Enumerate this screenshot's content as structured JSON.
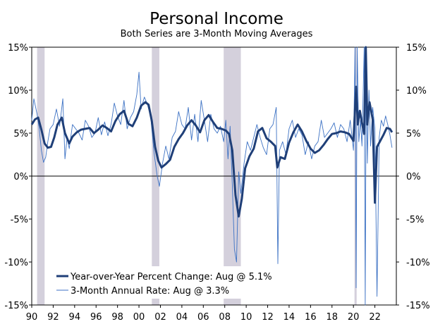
{
  "chart_data": {
    "type": "line",
    "title": "Personal Income",
    "subtitle": "Both Series are 3-Month Moving Averages",
    "ylim": [
      -15,
      15
    ],
    "y_ticks": [
      15,
      10,
      5,
      0,
      -5,
      -10,
      -15
    ],
    "y_tick_labels": [
      "15%",
      "10%",
      "5%",
      "0%",
      "-5%",
      "-10%",
      "-15%"
    ],
    "xlim": [
      1990.0,
      2024.0
    ],
    "x_ticks": [
      1990,
      1992,
      1994,
      1996,
      1998,
      2000,
      2002,
      2004,
      2006,
      2008,
      2010,
      2012,
      2014,
      2016,
      2018,
      2020,
      2022
    ],
    "x_tick_labels": [
      "90",
      "92",
      "94",
      "96",
      "98",
      "00",
      "02",
      "04",
      "06",
      "08",
      "10",
      "12",
      "14",
      "16",
      "18",
      "20",
      "22"
    ],
    "recessions": [
      [
        1990.5,
        1991.2
      ],
      [
        2001.2,
        2001.9
      ],
      [
        2007.9,
        2009.5
      ],
      [
        2020.1,
        2020.3
      ]
    ],
    "legend_placement": "bottom-left",
    "colors": {
      "yoy": "#1f3f78",
      "annual": "#3d72c4",
      "recession": "#d4d0dc",
      "zero_line": "#000000"
    },
    "series": [
      {
        "name": "Year-over-Year Percent Change: Aug @ 5.1%",
        "x": [
          1990.0,
          1990.3,
          1990.6,
          1990.9,
          1991.2,
          1991.5,
          1991.8,
          1992.1,
          1992.4,
          1992.8,
          1993.1,
          1993.5,
          1993.8,
          1994.2,
          1994.6,
          1995.0,
          1995.4,
          1995.8,
          1996.2,
          1996.6,
          1997.0,
          1997.4,
          1997.8,
          1998.2,
          1998.6,
          1999.0,
          1999.4,
          1999.8,
          2000.2,
          2000.6,
          2000.9,
          2001.2,
          2001.5,
          2001.8,
          2002.1,
          2002.5,
          2002.9,
          2003.3,
          2003.7,
          2004.1,
          2004.5,
          2004.9,
          2005.3,
          2005.7,
          2006.1,
          2006.5,
          2006.9,
          2007.3,
          2007.7,
          2008.1,
          2008.4,
          2008.7,
          2009.0,
          2009.3,
          2009.6,
          2009.9,
          2010.3,
          2010.7,
          2011.1,
          2011.5,
          2011.9,
          2012.3,
          2012.7,
          2012.9,
          2013.2,
          2013.6,
          2014.0,
          2014.4,
          2014.8,
          2015.2,
          2015.6,
          2016.0,
          2016.4,
          2016.8,
          2017.2,
          2017.6,
          2018.0,
          2018.4,
          2018.8,
          2019.2,
          2019.6,
          2020.0,
          2020.25,
          2020.4,
          2020.6,
          2020.8,
          2021.0,
          2021.15,
          2021.3,
          2021.5,
          2021.8,
          2022.0,
          2022.2,
          2022.5,
          2022.8,
          2023.1,
          2023.4,
          2023.6
        ],
        "y": [
          6.0,
          6.6,
          6.8,
          5.4,
          3.8,
          3.3,
          3.4,
          4.5,
          6.0,
          6.8,
          5.0,
          3.8,
          4.6,
          5.1,
          5.4,
          5.5,
          5.6,
          5.0,
          5.4,
          5.9,
          5.6,
          5.2,
          6.4,
          7.2,
          7.6,
          6.1,
          5.8,
          6.8,
          8.2,
          8.6,
          8.3,
          6.4,
          3.4,
          1.8,
          1.0,
          1.4,
          1.9,
          3.4,
          4.3,
          5.0,
          5.9,
          6.5,
          5.9,
          5.1,
          6.5,
          7.1,
          6.3,
          5.6,
          5.5,
          5.3,
          4.9,
          3.0,
          -2.2,
          -4.7,
          -2.6,
          0.9,
          2.3,
          3.2,
          5.2,
          5.6,
          4.4,
          4.0,
          3.5,
          1.0,
          2.2,
          2.0,
          3.9,
          5.1,
          6.0,
          5.2,
          4.1,
          3.2,
          2.7,
          3.0,
          3.6,
          4.3,
          4.9,
          5.0,
          5.2,
          5.1,
          4.9,
          4.1,
          10.4,
          6.0,
          7.6,
          6.2,
          4.9,
          15.0,
          6.0,
          8.6,
          6.6,
          -3.1,
          3.4,
          4.1,
          4.8,
          5.6,
          5.5,
          5.1
        ]
      },
      {
        "name": "3-Month Annual Rate: Aug @ 3.3%",
        "x": [
          1990.0,
          1990.2,
          1990.5,
          1990.7,
          1990.9,
          1991.1,
          1991.3,
          1991.5,
          1991.7,
          1992.0,
          1992.3,
          1992.6,
          1992.9,
          1993.1,
          1993.3,
          1993.5,
          1993.8,
          1994.1,
          1994.4,
          1994.7,
          1995.0,
          1995.3,
          1995.6,
          1995.9,
          1996.2,
          1996.5,
          1996.8,
          1997.1,
          1997.4,
          1997.7,
          1998.0,
          1998.3,
          1998.6,
          1998.9,
          1999.2,
          1999.5,
          1999.8,
          2000.0,
          2000.2,
          2000.5,
          2000.8,
          2001.1,
          2001.4,
          2001.7,
          2001.9,
          2002.2,
          2002.5,
          2002.8,
          2003.1,
          2003.4,
          2003.7,
          2004.0,
          2004.3,
          2004.6,
          2004.9,
          2005.2,
          2005.5,
          2005.8,
          2006.1,
          2006.4,
          2006.7,
          2007.0,
          2007.3,
          2007.6,
          2007.9,
          2008.1,
          2008.3,
          2008.5,
          2008.7,
          2008.9,
          2009.1,
          2009.3,
          2009.5,
          2009.8,
          2010.1,
          2010.4,
          2010.7,
          2011.0,
          2011.3,
          2011.6,
          2011.9,
          2012.2,
          2012.5,
          2012.8,
          2012.95,
          2013.1,
          2013.4,
          2013.7,
          2014.0,
          2014.3,
          2014.6,
          2014.9,
          2015.2,
          2015.5,
          2015.8,
          2016.1,
          2016.4,
          2016.7,
          2017.0,
          2017.3,
          2017.6,
          2017.9,
          2018.2,
          2018.5,
          2018.8,
          2019.1,
          2019.4,
          2019.7,
          2020.0,
          2020.15,
          2020.25,
          2020.35,
          2020.5,
          2020.65,
          2020.8,
          2021.0,
          2021.1,
          2021.2,
          2021.3,
          2021.45,
          2021.6,
          2021.8,
          2022.0,
          2022.2,
          2022.4,
          2022.6,
          2022.8,
          2023.0,
          2023.2,
          2023.4,
          2023.6
        ],
        "y": [
          6.5,
          9.0,
          7.2,
          5.5,
          3.0,
          1.6,
          2.2,
          4.0,
          5.5,
          6.0,
          7.8,
          5.8,
          9.0,
          2.0,
          4.5,
          3.2,
          6.0,
          5.5,
          5.0,
          4.2,
          6.5,
          5.8,
          4.5,
          5.0,
          6.8,
          4.8,
          6.3,
          4.7,
          6.0,
          8.5,
          7.0,
          6.0,
          8.8,
          5.5,
          6.8,
          7.5,
          9.5,
          12.1,
          7.8,
          9.2,
          8.3,
          6.8,
          2.8,
          0.0,
          -1.2,
          1.5,
          3.5,
          2.0,
          4.5,
          5.2,
          7.5,
          6.0,
          5.5,
          8.0,
          4.2,
          7.2,
          4.0,
          8.8,
          6.5,
          4.0,
          7.2,
          5.5,
          5.0,
          5.8,
          4.0,
          6.5,
          2.0,
          5.8,
          -1.0,
          -8.5,
          -10.0,
          0.5,
          -2.0,
          1.5,
          4.0,
          3.0,
          4.5,
          6.0,
          4.5,
          3.3,
          2.5,
          5.5,
          6.0,
          8.0,
          -10.2,
          3.0,
          4.0,
          2.5,
          5.5,
          6.5,
          4.5,
          5.5,
          4.8,
          2.5,
          4.0,
          2.0,
          3.5,
          4.0,
          6.5,
          4.5,
          5.0,
          5.5,
          6.2,
          4.5,
          6.0,
          5.5,
          4.0,
          6.5,
          3.0,
          15.0,
          -13.0,
          15.0,
          4.0,
          6.5,
          3.5,
          15.0,
          -15.0,
          15.0,
          1.5,
          10.0,
          3.5,
          8.0,
          5.5,
          -14.0,
          4.5,
          6.5,
          5.8,
          7.0,
          6.0,
          4.8,
          3.3
        ]
      }
    ]
  },
  "legend": {
    "yoy_label": "Year-over-Year Percent Change: Aug @ 5.1%",
    "annual_label": "3-Month Annual Rate: Aug @ 3.3%"
  }
}
